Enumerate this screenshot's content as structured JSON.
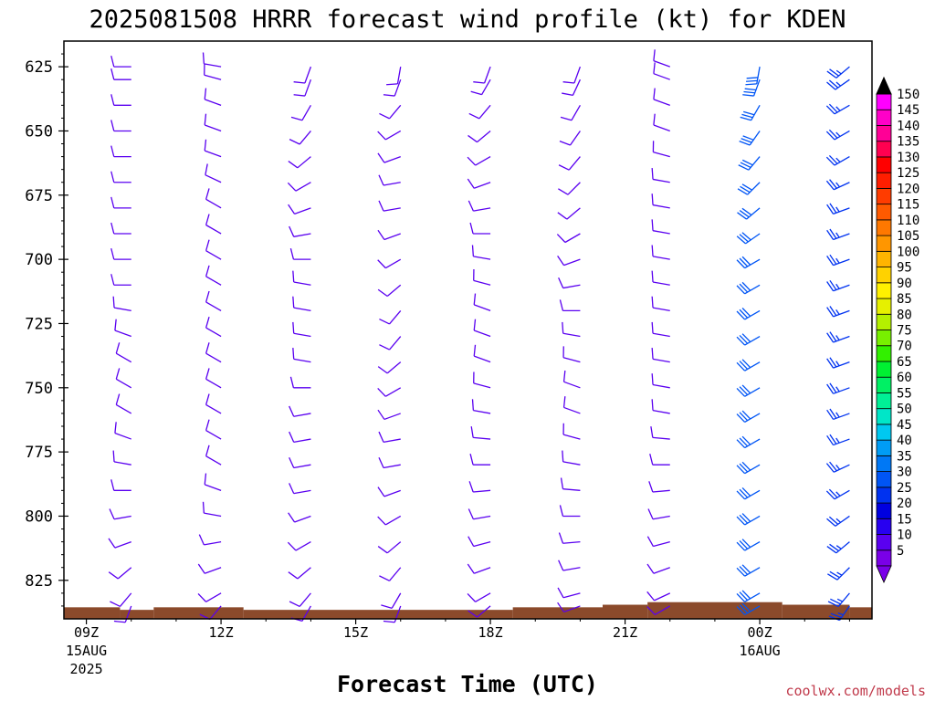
{
  "chart_data": {
    "type": "wind-barb-timeseries",
    "title": "2025081508 HRRR forecast wind profile (kt) for KDEN",
    "xlabel": "Forecast Time (UTC)",
    "ylabel": "",
    "credit": "coolwx.com/models",
    "units": "kt",
    "y_axis": {
      "quantity": "pressure (hPa)",
      "ticks": [
        625,
        650,
        675,
        700,
        725,
        750,
        775,
        800,
        825
      ],
      "range": [
        615,
        840
      ]
    },
    "x_axis": {
      "range_hours": [
        8.5,
        26.5
      ],
      "ticks": [
        {
          "hour": 9,
          "label": "09Z",
          "date": "15AUG",
          "year": "2025"
        },
        {
          "hour": 12,
          "label": "12Z",
          "date": "",
          "year": ""
        },
        {
          "hour": 15,
          "label": "15Z",
          "date": "",
          "year": ""
        },
        {
          "hour": 18,
          "label": "18Z",
          "date": "",
          "year": ""
        },
        {
          "hour": 21,
          "label": "21Z",
          "date": "",
          "year": ""
        },
        {
          "hour": 24,
          "label": "00Z",
          "date": "16AUG",
          "year": ""
        }
      ]
    },
    "barb_levels": [
      625,
      630,
      640,
      650,
      660,
      670,
      680,
      690,
      700,
      710,
      720,
      730,
      740,
      750,
      760,
      770,
      780,
      790,
      800,
      810,
      820,
      830,
      835
    ],
    "profiles": [
      {
        "hour": 10,
        "speed": 10,
        "dirs": [
          270,
          270,
          270,
          270,
          270,
          270,
          270,
          270,
          270,
          270,
          280,
          290,
          300,
          300,
          300,
          290,
          280,
          270,
          260,
          250,
          230,
          220,
          200
        ]
      },
      {
        "hour": 12,
        "speed": 10,
        "dirs": [
          280,
          285,
          290,
          290,
          290,
          295,
          300,
          300,
          300,
          300,
          300,
          300,
          300,
          300,
          300,
          300,
          300,
          290,
          280,
          260,
          250,
          240,
          220
        ]
      },
      {
        "hour": 14,
        "speed": 10,
        "dirs": [
          200,
          200,
          210,
          220,
          230,
          240,
          250,
          260,
          270,
          280,
          280,
          280,
          280,
          270,
          260,
          260,
          260,
          260,
          250,
          240,
          230,
          220,
          210
        ]
      },
      {
        "hour": 16,
        "speed": 10,
        "dirs": [
          190,
          200,
          220,
          240,
          250,
          260,
          260,
          250,
          240,
          230,
          220,
          220,
          230,
          240,
          250,
          260,
          260,
          250,
          240,
          230,
          220,
          210,
          200
        ]
      },
      {
        "hour": 18,
        "speed": 10,
        "dirs": [
          200,
          210,
          220,
          230,
          240,
          250,
          260,
          270,
          280,
          285,
          290,
          290,
          290,
          285,
          280,
          275,
          270,
          265,
          260,
          255,
          250,
          240,
          230
        ]
      },
      {
        "hour": 20,
        "speed": 10,
        "dirs": [
          200,
          205,
          210,
          215,
          220,
          225,
          230,
          240,
          250,
          260,
          270,
          280,
          285,
          290,
          290,
          285,
          280,
          275,
          270,
          265,
          260,
          255,
          250
        ]
      },
      {
        "hour": 22,
        "speed": 10,
        "dirs": [
          290,
          290,
          290,
          290,
          285,
          280,
          280,
          280,
          280,
          280,
          280,
          280,
          280,
          280,
          280,
          275,
          270,
          265,
          260,
          255,
          250,
          245,
          240
        ]
      },
      {
        "hour": 24,
        "speed": 30,
        "dirs": [
          190,
          200,
          210,
          215,
          220,
          225,
          230,
          235,
          240,
          240,
          240,
          240,
          240,
          240,
          240,
          240,
          240,
          240,
          240,
          240,
          240,
          240,
          240
        ]
      },
      {
        "hour": 26,
        "speed": 25,
        "dirs": [
          230,
          235,
          240,
          240,
          240,
          245,
          250,
          250,
          250,
          250,
          250,
          250,
          250,
          250,
          250,
          250,
          245,
          240,
          235,
          230,
          225,
          220,
          215
        ]
      }
    ],
    "ground_surface": [
      {
        "from": 8.5,
        "to": 9.75,
        "pressure": 835.5
      },
      {
        "from": 9.75,
        "to": 10.5,
        "pressure": 836.5
      },
      {
        "from": 10.5,
        "to": 12.5,
        "pressure": 835.5
      },
      {
        "from": 12.5,
        "to": 18.5,
        "pressure": 836.5
      },
      {
        "from": 18.5,
        "to": 20.5,
        "pressure": 835.5
      },
      {
        "from": 20.5,
        "to": 21.5,
        "pressure": 834.5
      },
      {
        "from": 21.5,
        "to": 24.5,
        "pressure": 833.5
      },
      {
        "from": 24.5,
        "to": 26,
        "pressure": 834.5
      },
      {
        "from": 26,
        "to": 26.5,
        "pressure": 835.5
      }
    ],
    "ground_color": "#8B4A2B",
    "colorbar": {
      "values": [
        5,
        10,
        15,
        20,
        25,
        30,
        35,
        40,
        45,
        50,
        55,
        60,
        65,
        70,
        75,
        80,
        85,
        90,
        95,
        100,
        105,
        110,
        115,
        120,
        125,
        130,
        135,
        140,
        145,
        150
      ],
      "colors": [
        "#7A00E8",
        "#5A00F0",
        "#2800F0",
        "#0000E0",
        "#0032F0",
        "#0055F5",
        "#0078F5",
        "#009CF5",
        "#00C8F0",
        "#00E6C8",
        "#00F096",
        "#00F064",
        "#00F032",
        "#32F000",
        "#78F000",
        "#B4F000",
        "#E6F000",
        "#FFF000",
        "#FFD200",
        "#FFB400",
        "#FF9600",
        "#FF7800",
        "#FF5A00",
        "#FF3C00",
        "#FF1E00",
        "#FF0000",
        "#FF0050",
        "#FF0096",
        "#FF00C8",
        "#FF00FF"
      ]
    }
  }
}
